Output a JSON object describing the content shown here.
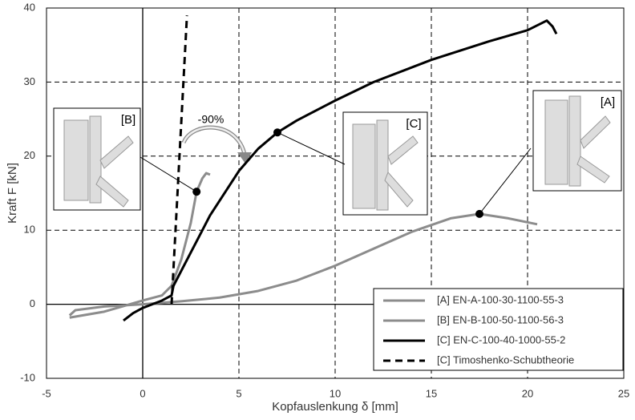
{
  "chart_data": {
    "type": "line",
    "xlabel": "Kopfauslenkung δ [mm]",
    "ylabel": "Kraft F [kN]",
    "xlim": [
      -5,
      25
    ],
    "ylim": [
      -10,
      40
    ],
    "xticks": [
      -5,
      0,
      5,
      10,
      15,
      20,
      25
    ],
    "yticks": [
      -10,
      0,
      10,
      20,
      30,
      40
    ],
    "grid": true,
    "legend": "lower right",
    "series": [
      {
        "name": "[A] EN-A-100-30-1100-55-3",
        "color": "#8c8c8c",
        "linestyle": "solid",
        "x": [
          -3.8,
          -3.5,
          -2,
          0,
          2,
          4,
          6,
          8,
          10,
          12,
          14,
          16,
          17.5,
          19,
          20.5
        ],
        "values": [
          -1.5,
          -0.8,
          -0.3,
          0,
          0.4,
          0.9,
          1.8,
          3.2,
          5.2,
          7.5,
          9.8,
          11.6,
          12.2,
          11.6,
          10.8
        ]
      },
      {
        "name": "[B] EN-B-100-50-1100-56-3",
        "color": "#8c8c8c",
        "linestyle": "solid",
        "x": [
          -3.8,
          -2,
          0,
          1,
          1.5,
          2,
          2.5,
          2.8,
          3.1,
          3.3,
          3.5
        ],
        "values": [
          -1.8,
          -1,
          0.5,
          1.2,
          2.5,
          6,
          11,
          15.2,
          17,
          17.7,
          17.5
        ]
      },
      {
        "name": "[C] EN-C-100-40-1000-55-2",
        "color": "#000000",
        "linestyle": "solid",
        "x": [
          -1,
          -0.5,
          0,
          1,
          1.5,
          1.6,
          2.5,
          3.5,
          5,
          6,
          7,
          8,
          10,
          12,
          15,
          18,
          20,
          21,
          21.3,
          21.5
        ],
        "values": [
          -2.2,
          -1.2,
          -0.5,
          0.5,
          1.2,
          2.5,
          7,
          12,
          18,
          21,
          23.2,
          24.8,
          27.5,
          30,
          33,
          35.5,
          37,
          38.3,
          37.5,
          36.5
        ]
      },
      {
        "name": "[C] Timoshenko-Schubtheorie",
        "color": "#000000",
        "linestyle": "dashed",
        "x": [
          1.5,
          2.3
        ],
        "values": [
          0,
          39
        ]
      }
    ],
    "callouts": [
      {
        "text": "[B]",
        "x": 2.8,
        "y": 15.2
      },
      {
        "text": "[C]",
        "x": 7,
        "y": 23.2
      },
      {
        "text": "[A]",
        "x": 17.5,
        "y": 12.2
      }
    ],
    "annotation": "-90%"
  }
}
